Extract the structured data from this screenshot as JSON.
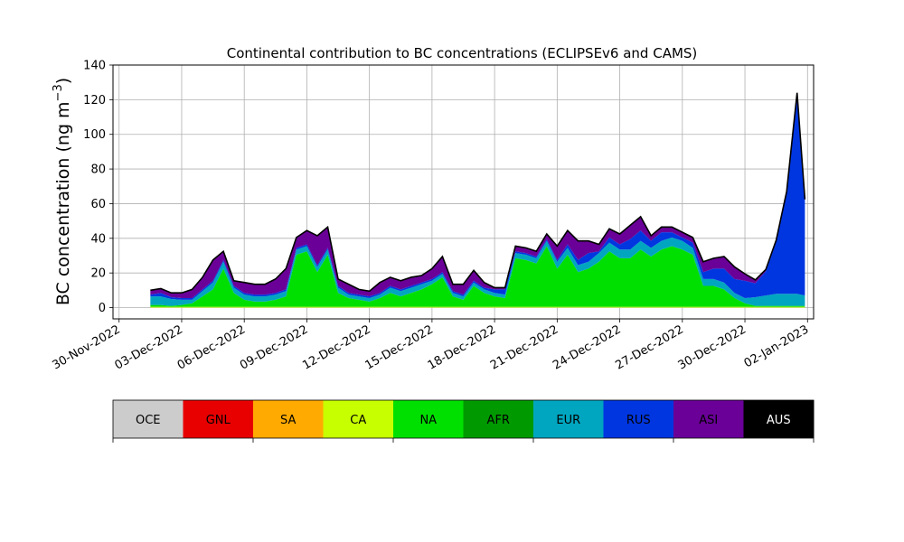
{
  "chart_data": {
    "type": "area",
    "stacked": true,
    "title": "Continental contribution to BC concentrations (ECLIPSEv6 and CAMS)",
    "ylabel": "BC concentration (ng m",
    "ylabel_sup": "−3",
    "ylabel_close": ")",
    "xlabel": "",
    "ylim": [
      -6.5,
      140
    ],
    "xlim": [
      "2022-11-29T17:00",
      "2023-01-02T07:00"
    ],
    "grid": true,
    "y_ticks": [
      0,
      20,
      40,
      60,
      80,
      100,
      120,
      140
    ],
    "x_ticks": [
      {
        "date": "2022-11-30",
        "label": "30-Nov-2022"
      },
      {
        "date": "2022-12-03",
        "label": "03-Dec-2022"
      },
      {
        "date": "2022-12-06",
        "label": "06-Dec-2022"
      },
      {
        "date": "2022-12-09",
        "label": "09-Dec-2022"
      },
      {
        "date": "2022-12-12",
        "label": "12-Dec-2022"
      },
      {
        "date": "2022-12-15",
        "label": "15-Dec-2022"
      },
      {
        "date": "2022-12-18",
        "label": "18-Dec-2022"
      },
      {
        "date": "2022-12-21",
        "label": "21-Dec-2022"
      },
      {
        "date": "2022-12-24",
        "label": "24-Dec-2022"
      },
      {
        "date": "2022-12-27",
        "label": "27-Dec-2022"
      },
      {
        "date": "2022-12-30",
        "label": "30-Dec-2022"
      },
      {
        "date": "2023-01-02",
        "label": "02-Jan-2023"
      }
    ],
    "x": [
      "2022-12-01T12:00",
      "2022-12-02T00:00",
      "2022-12-02T12:00",
      "2022-12-03T00:00",
      "2022-12-03T12:00",
      "2022-12-04T00:00",
      "2022-12-04T12:00",
      "2022-12-05T00:00",
      "2022-12-05T12:00",
      "2022-12-06T00:00",
      "2022-12-06T12:00",
      "2022-12-07T00:00",
      "2022-12-07T12:00",
      "2022-12-08T00:00",
      "2022-12-08T12:00",
      "2022-12-09T00:00",
      "2022-12-09T12:00",
      "2022-12-10T00:00",
      "2022-12-10T12:00",
      "2022-12-11T00:00",
      "2022-12-11T12:00",
      "2022-12-12T00:00",
      "2022-12-12T12:00",
      "2022-12-13T00:00",
      "2022-12-13T12:00",
      "2022-12-14T00:00",
      "2022-12-14T12:00",
      "2022-12-15T00:00",
      "2022-12-15T12:00",
      "2022-12-16T00:00",
      "2022-12-16T12:00",
      "2022-12-17T00:00",
      "2022-12-17T12:00",
      "2022-12-18T00:00",
      "2022-12-18T12:00",
      "2022-12-19T00:00",
      "2022-12-19T12:00",
      "2022-12-20T00:00",
      "2022-12-20T12:00",
      "2022-12-21T00:00",
      "2022-12-21T12:00",
      "2022-12-22T00:00",
      "2022-12-22T12:00",
      "2022-12-23T00:00",
      "2022-12-23T12:00",
      "2022-12-24T00:00",
      "2022-12-24T12:00",
      "2022-12-25T00:00",
      "2022-12-25T12:00",
      "2022-12-26T00:00",
      "2022-12-26T12:00",
      "2022-12-27T00:00",
      "2022-12-27T12:00",
      "2022-12-28T00:00",
      "2022-12-28T12:00",
      "2022-12-29T00:00",
      "2022-12-29T12:00",
      "2022-12-30T00:00",
      "2022-12-30T12:00",
      "2022-12-31T00:00",
      "2022-12-31T12:00",
      "2023-01-01T00:00",
      "2023-01-01T12:00",
      "2023-01-01T21:00"
    ],
    "series": [
      {
        "name": "OCE",
        "color": "#cccccc",
        "values": [
          0,
          0,
          0,
          0,
          0,
          0,
          0,
          0,
          0,
          0,
          0,
          0,
          0,
          0,
          0,
          0,
          0,
          0,
          0,
          0,
          0,
          0,
          0,
          0,
          0,
          0,
          0,
          0,
          0,
          0,
          0,
          0,
          0,
          0,
          0,
          0,
          0,
          0,
          0,
          0,
          0,
          0,
          0,
          0,
          0,
          0,
          0,
          0,
          0,
          0,
          0,
          0,
          0,
          0,
          0,
          0,
          0,
          0,
          0,
          0,
          0,
          0,
          0,
          0
        ]
      },
      {
        "name": "GNL",
        "color": "#e80000",
        "values": [
          0,
          0,
          0,
          0,
          0,
          0,
          0,
          0,
          0,
          0,
          0,
          0,
          0,
          0,
          0,
          0,
          0,
          0,
          0,
          0,
          0,
          0,
          0,
          0,
          0,
          0,
          0,
          0,
          0,
          0,
          0,
          0,
          0,
          0,
          0,
          0,
          0,
          0,
          0,
          0,
          0,
          0,
          0,
          0,
          0,
          0,
          0,
          0,
          0,
          0,
          0,
          0,
          0,
          0,
          0,
          0,
          0,
          0,
          0,
          0,
          0,
          0,
          0,
          0
        ]
      },
      {
        "name": "SA",
        "color": "#ffaa00",
        "values": [
          0,
          0,
          0,
          0,
          0,
          0,
          0,
          0,
          0,
          0,
          0,
          0,
          0,
          0,
          0,
          0,
          0,
          0,
          0,
          0,
          0,
          0,
          0,
          0,
          0,
          0,
          0,
          0,
          0,
          0,
          0,
          0,
          0,
          0,
          0,
          0,
          0,
          0,
          0,
          0,
          0,
          0,
          0,
          0,
          0,
          0,
          0,
          0,
          0,
          0,
          0,
          0,
          0,
          0,
          0,
          0,
          0,
          0,
          0,
          0,
          0,
          0,
          0,
          0
        ]
      },
      {
        "name": "CA",
        "color": "#c8ff00",
        "values": [
          0.5,
          0.5,
          0.5,
          0.5,
          0.5,
          0.5,
          0.5,
          0.5,
          0.5,
          0.5,
          0.5,
          0.5,
          0.5,
          0.5,
          0.5,
          0.5,
          0.5,
          0.5,
          0.5,
          0.5,
          0.5,
          0.5,
          0.5,
          0.5,
          0.5,
          0.5,
          0.5,
          0.5,
          0.5,
          0.5,
          0.5,
          0.5,
          0.5,
          0.5,
          0.5,
          0.5,
          0.5,
          0.5,
          0.5,
          0.5,
          0.5,
          0.5,
          0.5,
          0.5,
          0.5,
          0.5,
          0.5,
          0.5,
          0.5,
          0.5,
          0.5,
          0.5,
          0.5,
          0.5,
          0.5,
          0.5,
          0.5,
          0.5,
          0.5,
          0.5,
          0.5,
          0.5,
          0.5,
          0.5
        ]
      },
      {
        "name": "NA",
        "color": "#00e000",
        "values": [
          1,
          1,
          0.5,
          1,
          2,
          6,
          10,
          22,
          8,
          4,
          3,
          3,
          4,
          6,
          30,
          32,
          20,
          30,
          8,
          5,
          4,
          3,
          5,
          8,
          6,
          8,
          10,
          13,
          17,
          6,
          4,
          12,
          8,
          6,
          5,
          28,
          27,
          25,
          35,
          22,
          30,
          20,
          22,
          26,
          32,
          28,
          28,
          33,
          29,
          33,
          35,
          33,
          30,
          12,
          12,
          10,
          5,
          2,
          0.5,
          0.5,
          0.5,
          0.5,
          0.5,
          0.5
        ]
      },
      {
        "name": "AFR",
        "color": "#009a00",
        "values": [
          0,
          0,
          0,
          0,
          0,
          0,
          0,
          0,
          0,
          0,
          0,
          0,
          0,
          0,
          0,
          0,
          0,
          0,
          0,
          0,
          0,
          0,
          0,
          0,
          0,
          0,
          0,
          0,
          0,
          0,
          0,
          0,
          0,
          0,
          0,
          0,
          0,
          0,
          0,
          0,
          0,
          0,
          0,
          0,
          0,
          0,
          0,
          0,
          0,
          0,
          0,
          0,
          0,
          0,
          0,
          0,
          0,
          0,
          0,
          0,
          0,
          0,
          0,
          0
        ]
      },
      {
        "name": "EUR",
        "color": "#00a6c0",
        "values": [
          5,
          5,
          4,
          3,
          2,
          3,
          4,
          4,
          3,
          3,
          3,
          3,
          3,
          3,
          3,
          3,
          3,
          3,
          3,
          2,
          2,
          2,
          2,
          3,
          3,
          3,
          3,
          2,
          2,
          2,
          2,
          2,
          2,
          2,
          2,
          3,
          3,
          3,
          3,
          4,
          4,
          4,
          4,
          5,
          5,
          5,
          5,
          5,
          5,
          5,
          5,
          5,
          4,
          4,
          4,
          4,
          3,
          3,
          5,
          6,
          7,
          7,
          7,
          6
        ]
      },
      {
        "name": "RUS",
        "color": "#0036e0",
        "values": [
          1,
          2,
          1,
          1,
          1,
          1,
          1,
          1,
          1,
          1,
          1,
          1,
          1,
          1,
          1,
          1,
          1,
          1,
          1,
          1,
          1,
          1,
          1,
          1,
          1,
          1,
          1,
          1,
          1,
          1,
          1,
          1,
          1,
          2,
          3,
          1,
          1,
          1,
          1,
          1,
          2,
          3,
          5,
          1,
          3,
          3,
          6,
          6,
          4,
          5,
          3,
          2,
          3,
          4,
          6,
          8,
          8,
          10,
          8,
          14,
          30,
          58,
          115,
          55
        ]
      },
      {
        "name": "ASI",
        "color": "#6a0098",
        "values": [
          2.5,
          2.5,
          2.5,
          3,
          5,
          7,
          12,
          5,
          3,
          6,
          6,
          6,
          8,
          12,
          6,
          8,
          17,
          12,
          4,
          5,
          3,
          3,
          6,
          5,
          5,
          5,
          4,
          6,
          9,
          4,
          6,
          6,
          3,
          1,
          1,
          3,
          3,
          3,
          3,
          8,
          8,
          11,
          7,
          4,
          5,
          6,
          8,
          8,
          3,
          3,
          3,
          3,
          3,
          6,
          6,
          7,
          7,
          4,
          2,
          1,
          1,
          1,
          1,
          0.5
        ]
      },
      {
        "name": "AUS",
        "color": "#000000",
        "values": [
          0,
          0,
          0,
          0,
          0,
          0,
          0,
          0,
          0,
          0,
          0,
          0,
          0,
          0,
          0,
          0,
          0,
          0,
          0,
          0,
          0,
          0,
          0,
          0,
          0,
          0,
          0,
          0,
          0,
          0,
          0,
          0,
          0,
          0,
          0,
          0,
          0,
          0,
          0,
          0,
          0,
          0,
          0,
          0,
          0,
          0,
          0,
          0,
          0,
          0,
          0,
          0,
          0,
          0,
          0,
          0,
          0,
          0,
          0,
          0,
          0,
          0,
          0,
          0
        ]
      }
    ],
    "colorbar": {
      "labels": [
        "OCE",
        "GNL",
        "SA",
        "CA",
        "NA",
        "AFR",
        "EUR",
        "RUS",
        "ASI",
        "AUS"
      ],
      "colors": [
        "#cccccc",
        "#e80000",
        "#ffaa00",
        "#c8ff00",
        "#00e000",
        "#009a00",
        "#00a6c0",
        "#0036e0",
        "#6a0098",
        "#000000"
      ],
      "label_colors": [
        "#000000",
        "#000000",
        "#000000",
        "#000000",
        "#000000",
        "#000000",
        "#000000",
        "#000000",
        "#000000",
        "#ffffff"
      ]
    }
  }
}
